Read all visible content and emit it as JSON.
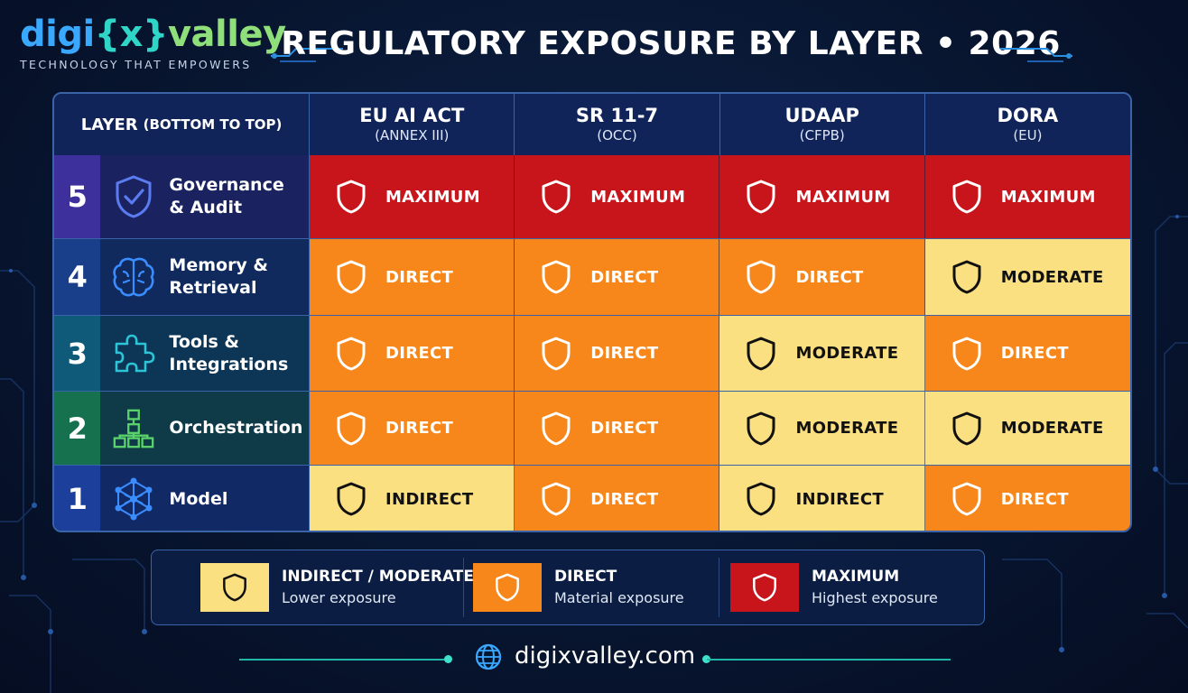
{
  "brand": {
    "logo_part1": "digi",
    "logo_part2": "{x}",
    "logo_part3": "valley",
    "tagline": "TECHNOLOGY THAT EMPOWERS"
  },
  "title": "REGULATORY EXPOSURE BY LAYER • 2026",
  "table": {
    "layer_header": "LAYER",
    "layer_header_sub": "(BOTTOM TO TOP)",
    "columns": [
      {
        "name": "EU AI ACT",
        "sub": "(ANNEX III)"
      },
      {
        "name": "SR 11-7",
        "sub": "(OCC)"
      },
      {
        "name": "UDAAP",
        "sub": "(CFPB)"
      },
      {
        "name": "DORA",
        "sub": "(EU)"
      }
    ],
    "rows": [
      {
        "num": "5",
        "label_line1": "Governance",
        "label_line2": "& Audit",
        "icon": "shield-check-icon",
        "cells": [
          "MAXIMUM",
          "MAXIMUM",
          "MAXIMUM",
          "MAXIMUM"
        ]
      },
      {
        "num": "4",
        "label_line1": "Memory &",
        "label_line2": "Retrieval",
        "icon": "brain-icon",
        "cells": [
          "DIRECT",
          "DIRECT",
          "DIRECT",
          "MODERATE"
        ]
      },
      {
        "num": "3",
        "label_line1": "Tools &",
        "label_line2": "Integrations",
        "icon": "puzzle-icon",
        "cells": [
          "DIRECT",
          "DIRECT",
          "MODERATE",
          "DIRECT"
        ]
      },
      {
        "num": "2",
        "label_line1": "Orchestration",
        "label_line2": "",
        "icon": "org-chart-icon",
        "cells": [
          "DIRECT",
          "DIRECT",
          "MODERATE",
          "MODERATE"
        ]
      },
      {
        "num": "1",
        "label_line1": "Model",
        "label_line2": "",
        "icon": "network-icon",
        "cells": [
          "INDIRECT",
          "DIRECT",
          "INDIRECT",
          "DIRECT"
        ]
      }
    ]
  },
  "legend": [
    {
      "title": "INDIRECT / MODERATE",
      "sub": "Lower exposure",
      "color": "#fbe082"
    },
    {
      "title": "DIRECT",
      "sub": "Material exposure",
      "color": "#f7871a"
    },
    {
      "title": "MAXIMUM",
      "sub": "Highest exposure",
      "color": "#c8151b"
    }
  ],
  "footer": {
    "url": "digixvalley.com"
  },
  "colors": {
    "maximum": "#c8151b",
    "direct": "#f7871a",
    "moderate": "#fbe082",
    "accent_teal": "#2fd6c8",
    "border": "#3a63a8"
  }
}
